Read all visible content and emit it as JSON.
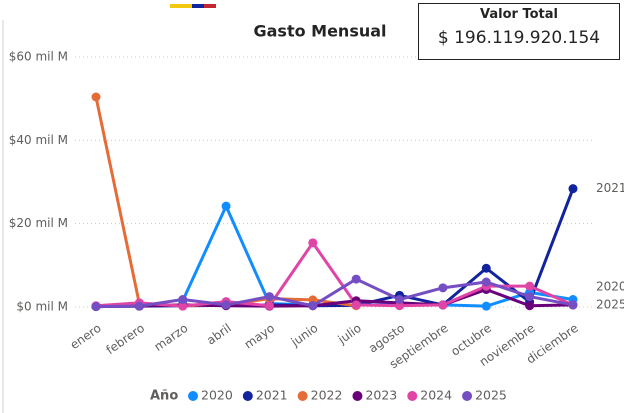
{
  "chart_data": {
    "type": "line",
    "title": "Gasto Mensual",
    "categories": [
      "enero",
      "febrero",
      "marzo",
      "abril",
      "mayo",
      "junio",
      "julio",
      "agosto",
      "septiembre",
      "octubre",
      "noviembre",
      "diciembre"
    ],
    "ylim": [
      0,
      60
    ],
    "yticks": [
      {
        "value": 0,
        "label": "$0 mil M"
      },
      {
        "value": 20,
        "label": "$20 mil M"
      },
      {
        "value": 40,
        "label": "$40 mil M"
      },
      {
        "value": 60,
        "label": "$60 mil M"
      }
    ],
    "grid": true,
    "legend_title": "Año",
    "legend": "bottom",
    "series": [
      {
        "name": "2020",
        "color": "#118dff",
        "values": [
          null,
          null,
          1.5,
          24.2,
          0.8,
          0.5,
          0.5,
          0.5,
          0.5,
          0.2,
          3.5,
          1.8
        ]
      },
      {
        "name": "2021",
        "color": "#12239e",
        "values": [
          0.1,
          0.2,
          0.3,
          0.4,
          0.5,
          0.3,
          0.4,
          2.8,
          0.5,
          9.3,
          1.2,
          28.4
        ]
      },
      {
        "name": "2022",
        "color": "#e66c37",
        "values": [
          50.4,
          0.8,
          0.3,
          0.5,
          2.0,
          1.7,
          0.3,
          null,
          null,
          null,
          null,
          null
        ]
      },
      {
        "name": "2023",
        "color": "#6b007b",
        "values": [
          0.2,
          0.2,
          0.5,
          0.3,
          0.2,
          0.3,
          1.5,
          1.0,
          0.5,
          4.2,
          0.3,
          0.5
        ]
      },
      {
        "name": "2024",
        "color": "#e044a7",
        "values": [
          0.3,
          1.0,
          0.2,
          1.3,
          0.3,
          15.4,
          0.5,
          0.3,
          0.5,
          5.0,
          5.0,
          0.5
        ]
      },
      {
        "name": "2025",
        "color": "#744ec2",
        "values": [
          0.1,
          0.2,
          1.8,
          0.5,
          2.5,
          0.3,
          6.7,
          1.8,
          4.6,
          6.0,
          2.5,
          0.5
        ]
      }
    ],
    "series_labels": [
      "2021",
      "2025",
      "2020"
    ]
  },
  "card": {
    "title": "Valor Total",
    "value": "$ 196.119.920.154"
  }
}
